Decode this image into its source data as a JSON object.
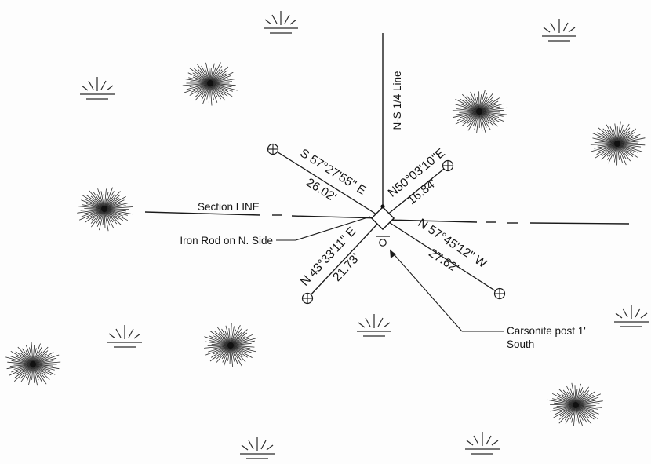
{
  "labels": {
    "ns_line": "N-S 1/4 Line",
    "section_line": "Section LINE",
    "iron_rod": "Iron Rod on N. Side",
    "carsonite_line1": "Carsonite post 1'",
    "carsonite_line2": "South"
  },
  "ties": [
    {
      "id": "nw",
      "bearing": "S 57°27'55\" E",
      "distance": "26.02'"
    },
    {
      "id": "ne",
      "bearing": "N50°03'10\"E",
      "distance": "16.84'"
    },
    {
      "id": "se",
      "bearing": "N 57°45'12\" W",
      "distance": "27.62'"
    },
    {
      "id": "sw",
      "bearing": "N 43°33'11\" E",
      "distance": "21.73'"
    }
  ],
  "symbols": {
    "tree": "tree-symbol",
    "marsh": "marsh-symbol",
    "witness": "witness-tree-symbol",
    "corner": "corner-monument-symbol"
  },
  "colors": {
    "ink": "#1a1a1a",
    "paper": "#fdfdfd"
  }
}
